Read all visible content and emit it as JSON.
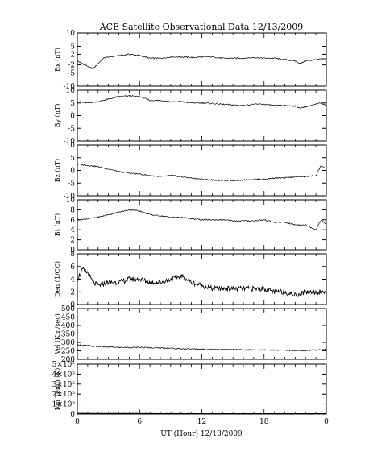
{
  "chart_data": {
    "title": "ACE Satellite Observational Data   12/13/2009",
    "xlabel": "UT (Hour)  12/13/2009",
    "x_ticks": [
      "0",
      "6",
      "12",
      "18",
      "0"
    ],
    "xlim": [
      0,
      24
    ],
    "panels": [
      {
        "type": "line",
        "ylabel": "Bx (nT)",
        "ylim": [
          -10,
          10
        ],
        "y_ticks": [
          "10",
          "5",
          "2",
          "-2",
          "-5",
          "-10"
        ],
        "x": [
          0,
          0.5,
          1,
          1.5,
          2,
          2.5,
          3,
          4,
          5,
          6,
          7,
          8,
          9,
          10,
          11,
          12,
          13,
          14,
          15,
          16,
          17,
          18,
          19,
          20,
          21,
          21.5,
          22,
          23,
          24
        ],
        "y": [
          -0.5,
          -1.5,
          -2.5,
          -3.5,
          -1.5,
          0.5,
          1.0,
          1.5,
          2.0,
          1.5,
          0.5,
          0.5,
          1.0,
          1.0,
          0.8,
          1.0,
          1.0,
          0.5,
          0.5,
          0.5,
          0.8,
          0.5,
          0.5,
          0.0,
          -0.5,
          -1.5,
          -0.5,
          0.0,
          0.3
        ]
      },
      {
        "type": "line",
        "ylabel": "By (nT)",
        "ylim": [
          -10,
          10
        ],
        "y_ticks": [
          "10",
          "5",
          "0",
          "-5",
          "-10"
        ],
        "x": [
          0,
          1,
          2,
          3,
          4,
          5,
          6,
          7,
          8,
          9,
          10,
          11,
          12,
          13,
          14,
          15,
          16,
          17,
          18,
          19,
          20,
          21,
          21.5,
          22,
          23,
          23.5,
          24
        ],
        "y": [
          5.5,
          5.0,
          5.5,
          6.5,
          7.5,
          7.8,
          7.5,
          6.0,
          6.0,
          5.5,
          5.5,
          5.0,
          5.0,
          4.8,
          4.5,
          4.2,
          4.0,
          4.5,
          4.5,
          4.0,
          4.0,
          3.8,
          3.0,
          3.5,
          4.5,
          5.0,
          4.0
        ]
      },
      {
        "type": "line",
        "ylabel": "Bz (nT)",
        "ylim": [
          -10,
          10
        ],
        "y_ticks": [
          "10",
          "5",
          "0",
          "-5",
          "-10"
        ],
        "x": [
          0,
          1,
          2,
          3,
          4,
          5,
          6,
          7,
          8,
          9,
          10,
          11,
          12,
          13,
          14,
          15,
          16,
          17,
          18,
          19,
          20,
          21,
          22,
          23,
          23.5,
          24
        ],
        "y": [
          2.5,
          2.0,
          1.5,
          0.5,
          -0.5,
          -1.0,
          -1.5,
          -2.0,
          -2.5,
          -2.0,
          -2.5,
          -3.0,
          -3.5,
          -3.8,
          -4.0,
          -4.0,
          -3.8,
          -3.5,
          -3.5,
          -3.0,
          -3.0,
          -2.5,
          -2.5,
          -2.0,
          2.0,
          0.5
        ]
      },
      {
        "type": "line",
        "ylabel": "Bt (nT)",
        "ylim": [
          0,
          10
        ],
        "y_ticks": [
          "10",
          "8",
          "6",
          "4",
          "2",
          "0"
        ],
        "x": [
          0,
          1,
          2,
          3,
          4,
          5,
          6,
          7,
          8,
          9,
          10,
          11,
          12,
          13,
          14,
          15,
          16,
          17,
          18,
          19,
          20,
          21,
          22,
          23,
          23.5,
          24
        ],
        "y": [
          6.0,
          6.2,
          6.5,
          7.0,
          7.5,
          8.0,
          7.8,
          7.0,
          6.8,
          6.5,
          6.5,
          6.2,
          6.0,
          6.0,
          6.0,
          5.8,
          5.8,
          5.8,
          6.0,
          5.5,
          5.5,
          5.0,
          5.0,
          4.0,
          6.0,
          5.0
        ]
      },
      {
        "type": "line",
        "ylabel": "Den (1/CC)",
        "ylim": [
          0,
          8
        ],
        "y_ticks": [
          "8",
          "6",
          "4",
          "2",
          "0"
        ],
        "x": [
          0,
          0.5,
          1,
          1.5,
          2,
          3,
          4,
          5,
          6,
          7,
          8,
          9,
          10,
          11,
          12,
          13,
          14,
          15,
          16,
          17,
          18,
          19,
          20,
          21,
          22,
          23,
          24
        ],
        "y": [
          4.0,
          5.5,
          5.0,
          3.5,
          3.0,
          3.5,
          3.5,
          4.0,
          4.0,
          3.5,
          3.5,
          4.0,
          4.5,
          3.5,
          3.0,
          2.5,
          2.5,
          2.5,
          2.5,
          2.5,
          2.5,
          2.0,
          2.0,
          1.5,
          2.0,
          2.0,
          2.0
        ]
      },
      {
        "type": "line",
        "ylabel": "Vel (Km/sec)",
        "ylim": [
          200,
          500
        ],
        "y_ticks": [
          "500",
          "450",
          "400",
          "350",
          "300",
          "250",
          "200"
        ],
        "x": [
          0,
          2,
          4,
          6,
          8,
          10,
          12,
          14,
          16,
          18,
          20,
          22,
          23,
          24
        ],
        "y": [
          285,
          275,
          270,
          270,
          268,
          262,
          260,
          258,
          256,
          255,
          253,
          252,
          255,
          258
        ]
      },
      {
        "type": "line",
        "ylabel": "Ion Temp (K)",
        "ylim": [
          0,
          500000
        ],
        "y_ticks": [
          "5×10⁵",
          "4×10⁵",
          "3×10⁵",
          "2×10⁵",
          "1×10⁵",
          "0"
        ],
        "x": [
          0,
          2,
          4,
          6,
          8,
          10,
          12,
          14,
          16,
          18,
          20,
          22,
          24
        ],
        "y": [
          8000,
          7000,
          7000,
          7000,
          6000,
          6000,
          5000,
          5000,
          5000,
          5000,
          5000,
          5000,
          6000
        ]
      }
    ]
  }
}
